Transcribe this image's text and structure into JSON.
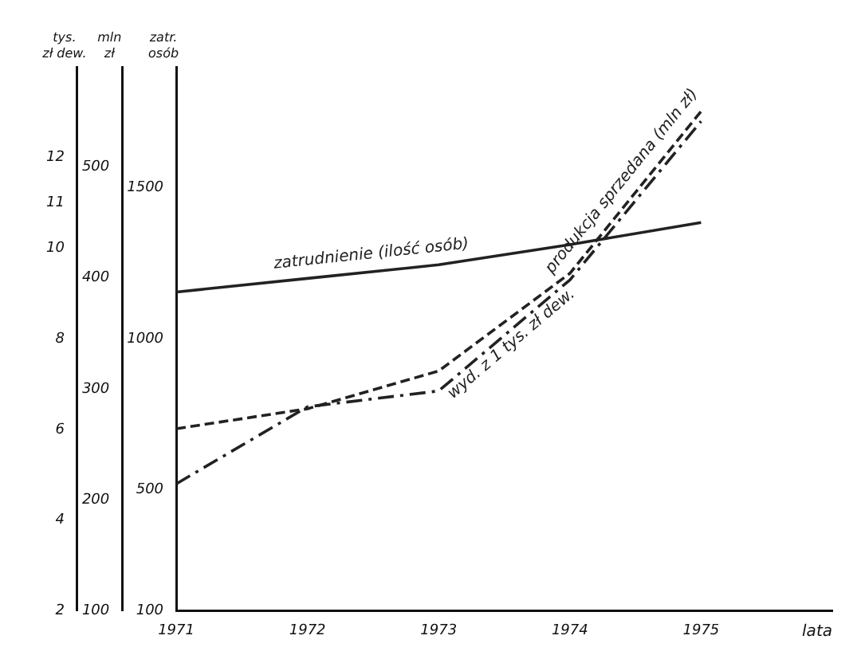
{
  "chart_data": {
    "type": "line",
    "xlabel": "lata",
    "ylabel": "zatr. osób",
    "y2label": "mln zł",
    "y3label": "tys. zł dew.",
    "x": [
      1971,
      1972,
      1973,
      1974,
      1975
    ],
    "xlim": [
      1971,
      1976
    ],
    "xticks": [
      1971,
      1972,
      1973,
      1974,
      1975
    ],
    "ylim": [
      100,
      1900
    ],
    "yticks": [
      100,
      500,
      1000,
      1500
    ],
    "y2lim": [
      100,
      590
    ],
    "y2ticks": [
      100,
      200,
      300,
      400,
      500
    ],
    "y3lim": [
      2,
      14
    ],
    "y3ticks": [
      2,
      4,
      6,
      8,
      10,
      11,
      12
    ],
    "grid": false,
    "legend": false,
    "marker": "none",
    "series": [
      {
        "name": "zatrudnienie (ilość osób)",
        "color": "#222222",
        "line_style": "solid",
        "values": [
          1155,
          1200,
          1245,
          1312,
          1385
        ]
      },
      {
        "name": "produkcja sprzedana (mln zł)",
        "color": "#222222",
        "line_style": "dashed",
        "axis": "y2",
        "values": [
          264,
          282,
          316,
          404,
          550
        ]
      },
      {
        "name": "wyd. z 1 tys. zł dew.",
        "color": "#222222",
        "line_style": "dashdot",
        "axis": "y3",
        "values": [
          4.8,
          6.5,
          6.85,
          9.3,
          12.8
        ]
      }
    ]
  }
}
